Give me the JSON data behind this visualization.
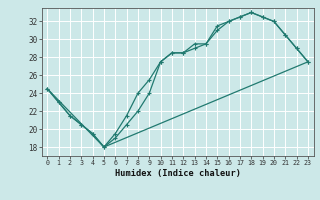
{
  "xlabel": "Humidex (Indice chaleur)",
  "bg_color": "#cce8e8",
  "grid_color": "#ffffff",
  "line_color": "#217a70",
  "xlim": [
    -0.5,
    23.5
  ],
  "ylim": [
    17.0,
    33.5
  ],
  "xticks": [
    0,
    1,
    2,
    3,
    4,
    5,
    6,
    7,
    8,
    9,
    10,
    11,
    12,
    13,
    14,
    15,
    16,
    17,
    18,
    19,
    20,
    21,
    22,
    23
  ],
  "yticks": [
    18,
    20,
    22,
    24,
    26,
    28,
    30,
    32
  ],
  "line1_x": [
    0,
    1,
    2,
    3,
    4,
    5,
    6,
    7,
    8,
    9,
    10,
    11,
    12,
    13,
    14,
    15,
    16,
    17,
    18,
    19,
    20,
    21,
    22,
    23
  ],
  "line1_y": [
    24.5,
    23.0,
    21.5,
    20.5,
    19.5,
    18.0,
    19.0,
    20.5,
    22.0,
    24.0,
    27.5,
    28.5,
    28.5,
    29.0,
    29.5,
    31.0,
    32.0,
    32.5,
    33.0,
    32.5,
    32.0,
    30.5,
    29.0,
    27.5
  ],
  "line2_x": [
    0,
    1,
    2,
    3,
    4,
    5,
    6,
    7,
    8,
    9,
    10,
    11,
    12,
    13,
    14,
    15,
    16,
    17,
    18,
    19,
    20,
    21,
    22,
    23
  ],
  "line2_y": [
    24.5,
    23.0,
    21.5,
    20.5,
    19.5,
    18.0,
    19.5,
    21.5,
    24.0,
    25.5,
    27.5,
    28.5,
    28.5,
    29.5,
    29.5,
    31.5,
    32.0,
    32.5,
    33.0,
    32.5,
    32.0,
    30.5,
    29.0,
    27.5
  ],
  "line3_x": [
    0,
    5,
    23
  ],
  "line3_y": [
    24.5,
    18.0,
    27.5
  ]
}
